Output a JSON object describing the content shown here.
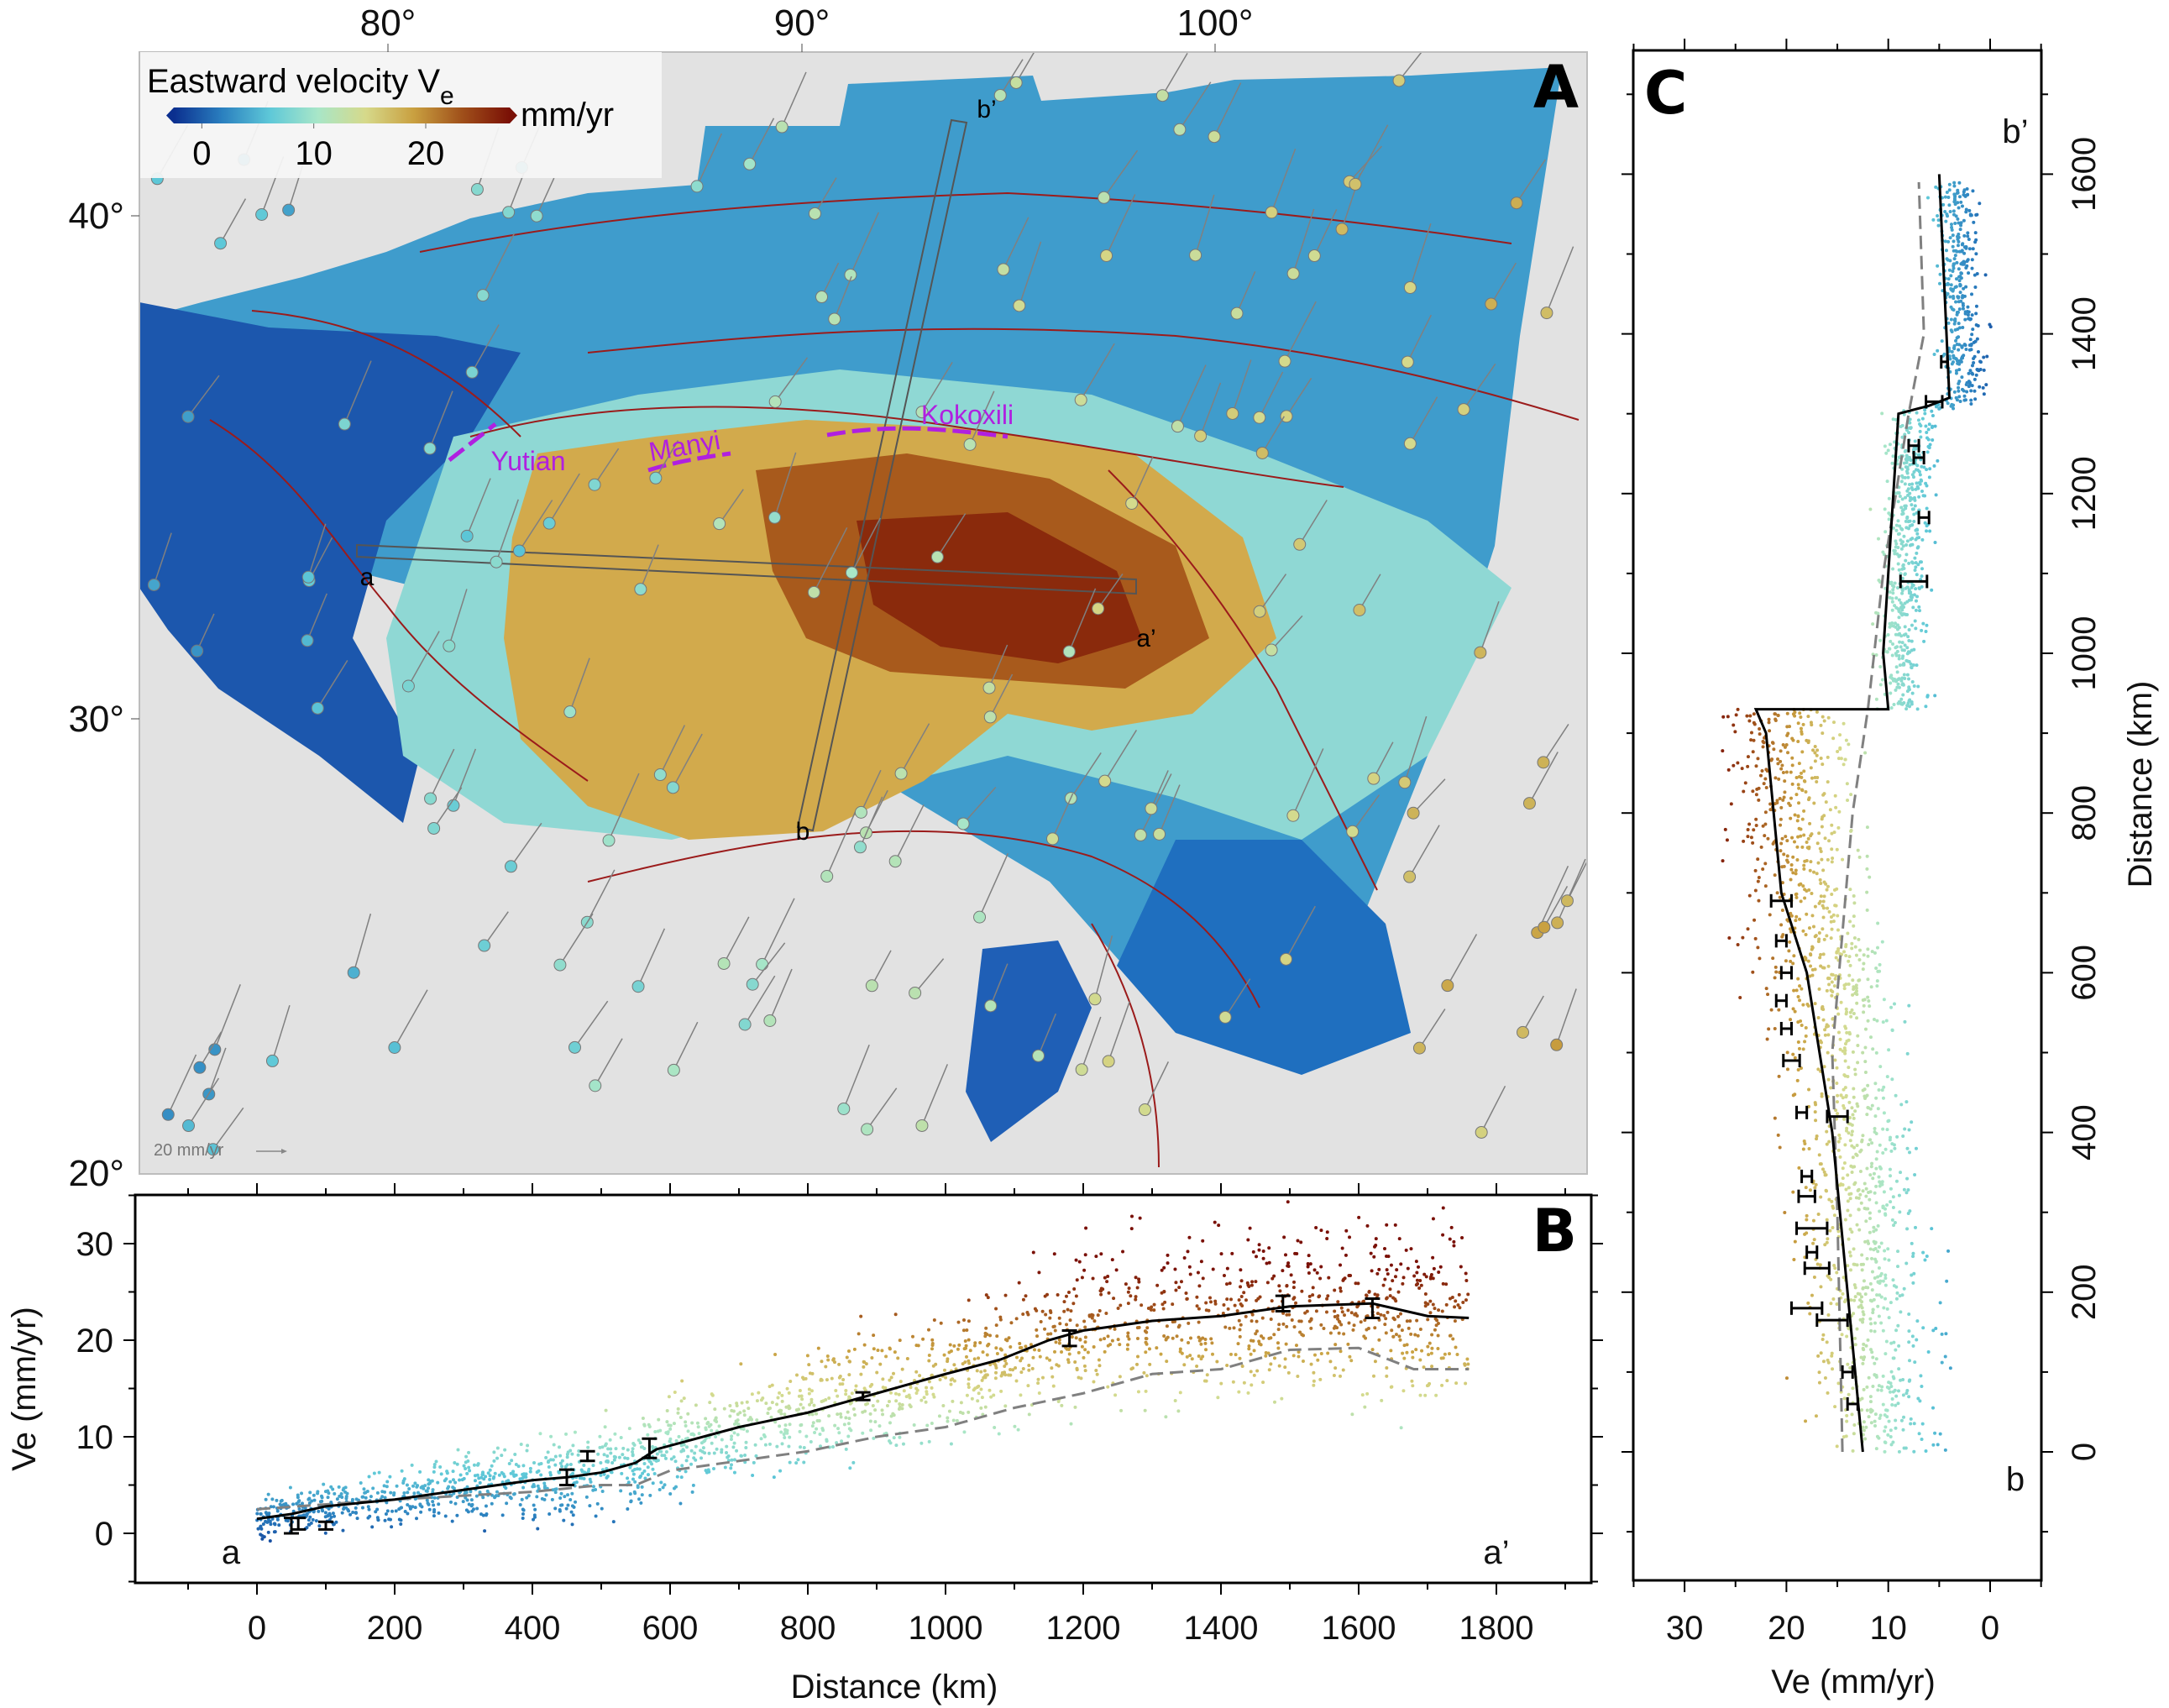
{
  "figure": {
    "panel_labels": {
      "a": "A",
      "b": "B",
      "c": "C"
    }
  },
  "chart_data": [
    {
      "id": "map",
      "type": "heatmap",
      "title": "Eastward velocity V",
      "title_subscript": "e",
      "colorbar": {
        "unit": "mm/yr",
        "ticks": [
          "0",
          "10",
          "20"
        ],
        "tick_values": [
          0,
          10,
          20
        ],
        "range": [
          -2.5,
          27.5
        ],
        "colors": [
          "#0b2f8f",
          "#2a7fbf",
          "#5ec8d8",
          "#a8e6c8",
          "#d6d98a",
          "#c9a040",
          "#a0501a",
          "#7a1006"
        ]
      },
      "lon_ticks": [
        "80°",
        "90°",
        "100°"
      ],
      "lon_values": [
        80,
        90,
        100
      ],
      "lat_ticks": [
        "40°",
        "30°",
        "20°"
      ],
      "lat_values": [
        40,
        30,
        20
      ],
      "fault_labels": [
        "Yutian",
        "Manyi",
        "Kokoxili"
      ],
      "profile_labels": {
        "a": "a",
        "a_prime": "a’",
        "b": "b",
        "b_prime": "b’"
      },
      "scale_label": "20 mm/yr",
      "colors": {
        "fault": "#9b1b1b",
        "fault_label": "#b020e0",
        "background": "#e2e2e2",
        "gps_arrow": "#808080"
      }
    },
    {
      "id": "profile-aa",
      "type": "scatter",
      "xlabel": "Distance (km)",
      "ylabel": "Ve (mm/yr)",
      "xlim": [
        -200,
        1950
      ],
      "ylim": [
        -5,
        35
      ],
      "xticks": [
        0,
        200,
        400,
        600,
        800,
        1000,
        1200,
        1400,
        1600,
        1800
      ],
      "yticks": [
        0,
        10,
        20,
        30
      ],
      "start_label": "a",
      "end_label": "a’",
      "model_line": {
        "x": [
          0,
          50,
          100,
          200,
          300,
          400,
          450,
          500,
          550,
          580,
          700,
          800,
          900,
          1000,
          1080,
          1150,
          1200,
          1300,
          1400,
          1500,
          1620,
          1700,
          1760
        ],
        "y": [
          1.5,
          2,
          2.8,
          3.5,
          4.5,
          5.5,
          5.8,
          6.3,
          7.3,
          8.7,
          11,
          12.5,
          14.5,
          16.5,
          18,
          20,
          21,
          22,
          22.5,
          23.5,
          23.8,
          22.5,
          22.3
        ]
      },
      "dashed_line": {
        "x": [
          0,
          200,
          400,
          500,
          550,
          600,
          700,
          800,
          900,
          1000,
          1100,
          1200,
          1300,
          1400,
          1500,
          1600,
          1680,
          1760
        ],
        "y": [
          2.5,
          3.5,
          4.3,
          5,
          5,
          6.5,
          7.5,
          8.5,
          10,
          11,
          13,
          14.5,
          16.5,
          17,
          19,
          19.2,
          17,
          17
        ]
      },
      "gps_points": [
        {
          "x": 50,
          "y": 0.8,
          "err": 0.8
        },
        {
          "x": 60,
          "y": 1.0,
          "err": 0.6
        },
        {
          "x": 100,
          "y": 0.8,
          "err": 0.4
        },
        {
          "x": 450,
          "y": 5.8,
          "err": 0.8
        },
        {
          "x": 480,
          "y": 8.0,
          "err": 0.5
        },
        {
          "x": 570,
          "y": 8.8,
          "err": 1.0
        },
        {
          "x": 880,
          "y": 14.2,
          "err": 0.4
        },
        {
          "x": 1180,
          "y": 20.2,
          "err": 0.8
        },
        {
          "x": 1490,
          "y": 23.8,
          "err": 0.8
        },
        {
          "x": 1620,
          "y": 23.3,
          "err": 1.0
        }
      ]
    },
    {
      "id": "profile-bb",
      "type": "scatter",
      "xlabel": "Ve (mm/yr)",
      "ylabel": "Distance (km)",
      "xlim": [
        35,
        -5
      ],
      "ylim": [
        -160,
        1760
      ],
      "xticks": [
        30,
        20,
        10,
        0
      ],
      "yticks": [
        0,
        200,
        400,
        600,
        800,
        1000,
        1200,
        1400,
        1600
      ],
      "start_label": "b",
      "end_label": "b’",
      "model_line": {
        "ve": [
          12.5,
          14,
          15.5,
          18,
          20.5,
          22,
          23,
          10,
          10.5,
          10,
          9.5,
          9,
          6,
          4,
          5
        ],
        "dist": [
          0,
          200,
          400,
          600,
          700,
          900,
          930,
          930,
          1000,
          1100,
          1200,
          1300,
          1310,
          1320,
          1600
        ]
      },
      "dashed_line": {
        "ve": [
          14.5,
          15,
          15.5,
          13.5,
          12,
          10.5,
          8,
          6.5,
          7
        ],
        "dist": [
          0,
          300,
          500,
          800,
          930,
          1100,
          1300,
          1400,
          1590
        ]
      },
      "gps_points": [
        {
          "ve": 13.5,
          "dist": 60,
          "err": 0.5
        },
        {
          "ve": 14,
          "dist": 100,
          "err": 0.5
        },
        {
          "ve": 15.5,
          "dist": 165,
          "err": 1.5
        },
        {
          "ve": 18,
          "dist": 180,
          "err": 1.5
        },
        {
          "ve": 17,
          "dist": 230,
          "err": 1.2
        },
        {
          "ve": 17.5,
          "dist": 250,
          "err": 0.5
        },
        {
          "ve": 17.5,
          "dist": 280,
          "err": 1.5
        },
        {
          "ve": 18,
          "dist": 320,
          "err": 0.8
        },
        {
          "ve": 18,
          "dist": 345,
          "err": 0.5
        },
        {
          "ve": 18.5,
          "dist": 425,
          "err": 0.5
        },
        {
          "ve": 15,
          "dist": 420,
          "err": 1.0
        },
        {
          "ve": 19.5,
          "dist": 490,
          "err": 0.8
        },
        {
          "ve": 20,
          "dist": 530,
          "err": 0.5
        },
        {
          "ve": 20.5,
          "dist": 565,
          "err": 0.5
        },
        {
          "ve": 20,
          "dist": 600,
          "err": 0.5
        },
        {
          "ve": 20.5,
          "dist": 640,
          "err": 0.5
        },
        {
          "ve": 20.5,
          "dist": 690,
          "err": 1.0
        },
        {
          "ve": 7.5,
          "dist": 1090,
          "err": 1.3
        },
        {
          "ve": 6.5,
          "dist": 1170,
          "err": 0.5
        },
        {
          "ve": 7,
          "dist": 1245,
          "err": 0.5
        },
        {
          "ve": 7.5,
          "dist": 1260,
          "err": 0.5
        },
        {
          "ve": 5.5,
          "dist": 1315,
          "err": 0.8
        },
        {
          "ve": 4.5,
          "dist": 1365,
          "err": 0.3
        }
      ]
    }
  ]
}
